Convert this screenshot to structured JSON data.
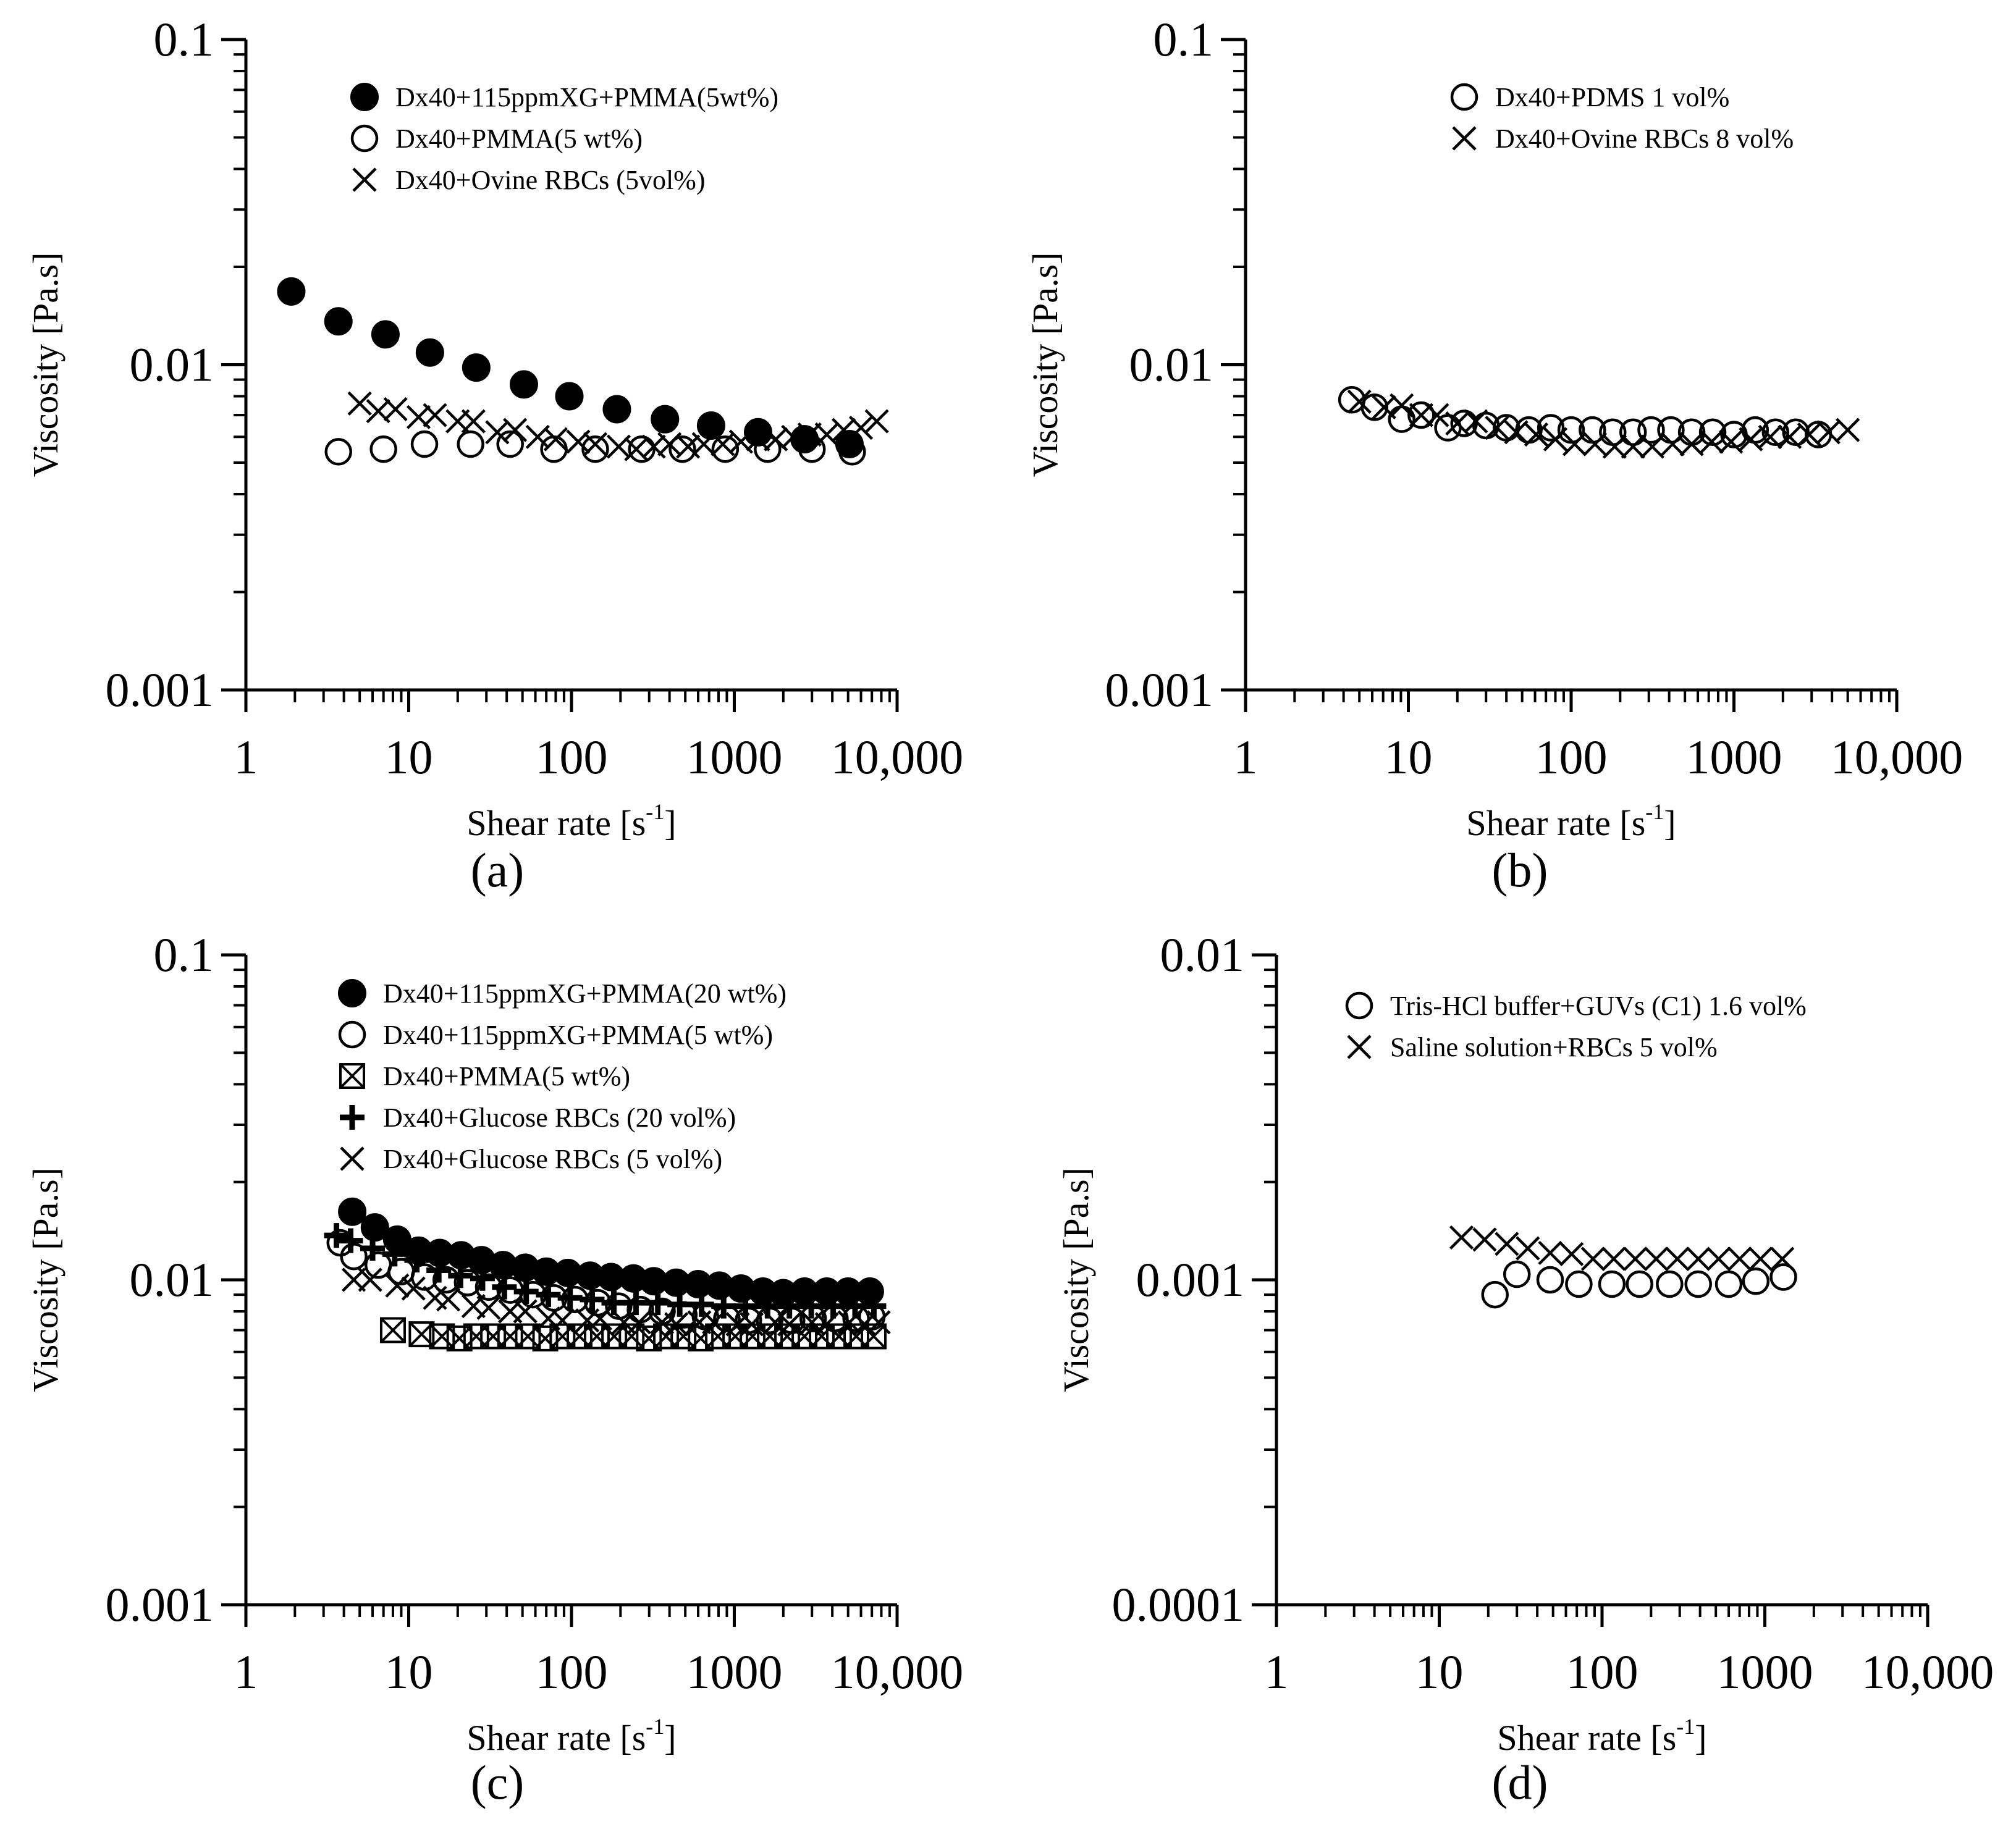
{
  "chart_data": [
    {
      "id": "a",
      "type": "scatter",
      "panel_label": "(a)",
      "x_scale": "log",
      "y_scale": "log",
      "xlim": [
        1,
        10000
      ],
      "ylim": [
        0.001,
        0.1
      ],
      "xticks": [
        "1",
        "10",
        "100",
        "1000",
        "10,000"
      ],
      "yticks": [
        "0.001",
        "0.01",
        "0.1"
      ],
      "xlabel": "Shear rate  [s",
      "xlabel_sup": "-1",
      "xlabel_end": "]",
      "ylabel": "Viscosity [Pa.s]",
      "legend_position": "top-right",
      "series": [
        {
          "name": "Dx40+115ppmXG+PMMA(5wt%)",
          "marker": "filled-circle",
          "x": [
            1.9,
            3.7,
            7.2,
            13.5,
            26,
            51,
            97,
            190,
            375,
            720,
            1400,
            2700,
            5100
          ],
          "y": [
            0.0168,
            0.0136,
            0.0124,
            0.0109,
            0.0098,
            0.0087,
            0.008,
            0.0073,
            0.0068,
            0.0065,
            0.0062,
            0.0059,
            0.0057
          ]
        },
        {
          "name": "Dx40+PMMA(5 wt%)",
          "marker": "open-circle",
          "x": [
            3.7,
            7.0,
            12.5,
            24,
            42,
            78,
            140,
            270,
            480,
            880,
            1600,
            3000,
            5300
          ],
          "y": [
            0.0054,
            0.0055,
            0.0057,
            0.0057,
            0.0057,
            0.0055,
            0.0055,
            0.0055,
            0.0055,
            0.0055,
            0.0055,
            0.0055,
            0.0054
          ]
        },
        {
          "name": "Dx40+Ovine RBCs (5vol%)",
          "marker": "x",
          "x": [
            5,
            6.5,
            8.3,
            11.5,
            14.5,
            20,
            25,
            35,
            45,
            62,
            80,
            110,
            140,
            195,
            250,
            320,
            400,
            520,
            650,
            850,
            1100,
            1400,
            1800,
            2300,
            2900,
            3700,
            4700,
            6000,
            7500
          ],
          "y": [
            0.0076,
            0.0072,
            0.0073,
            0.0069,
            0.007,
            0.0067,
            0.0067,
            0.0062,
            0.0063,
            0.006,
            0.0059,
            0.0058,
            0.0057,
            0.0056,
            0.0055,
            0.0056,
            0.0057,
            0.0056,
            0.0057,
            0.0057,
            0.0058,
            0.0059,
            0.0059,
            0.006,
            0.0061,
            0.0061,
            0.0063,
            0.0064,
            0.0067
          ]
        }
      ]
    },
    {
      "id": "b",
      "type": "scatter",
      "panel_label": "(b)",
      "x_scale": "log",
      "y_scale": "log",
      "xlim": [
        1,
        10000
      ],
      "ylim": [
        0.001,
        0.1
      ],
      "xticks": [
        "1",
        "10",
        "100",
        "1000",
        "10,000"
      ],
      "yticks": [
        "0.001",
        "0.01",
        "0.1"
      ],
      "xlabel": "Shear rate  [s",
      "xlabel_sup": "-1",
      "xlabel_end": "]",
      "ylabel": "Viscosity [Pa.s]",
      "legend_position": "top-right",
      "series": [
        {
          "name": "Dx40+PDMS 1 vol%",
          "marker": "open-circle",
          "x": [
            4.5,
            6.2,
            9.1,
            12,
            17.5,
            22,
            30,
            40,
            55,
            75,
            100,
            135,
            180,
            240,
            310,
            410,
            550,
            740,
            1000,
            1350,
            1800,
            2400,
            3300
          ],
          "y": [
            0.0078,
            0.0074,
            0.0068,
            0.007,
            0.0064,
            0.0066,
            0.0065,
            0.0064,
            0.0063,
            0.0064,
            0.0063,
            0.0063,
            0.0062,
            0.0062,
            0.0063,
            0.0063,
            0.0062,
            0.0062,
            0.0061,
            0.0063,
            0.0062,
            0.0062,
            0.0061
          ]
        },
        {
          "name": "Dx40+Ovine RBCs 8 vol%",
          "marker": "x",
          "x": [
            5,
            7.1,
            9.1,
            12,
            15,
            20,
            26,
            35,
            46,
            61,
            80,
            105,
            140,
            185,
            240,
            315,
            420,
            550,
            730,
            960,
            1270,
            1670,
            2200,
            2900,
            3800,
            5000
          ],
          "y": [
            0.0077,
            0.0074,
            0.0075,
            0.007,
            0.007,
            0.0066,
            0.0067,
            0.0064,
            0.0062,
            0.0061,
            0.0059,
            0.0057,
            0.0057,
            0.0056,
            0.0056,
            0.0056,
            0.0057,
            0.0057,
            0.0058,
            0.0058,
            0.0059,
            0.006,
            0.006,
            0.0061,
            0.0062,
            0.0063
          ]
        }
      ]
    },
    {
      "id": "c",
      "type": "scatter",
      "panel_label": "(c)",
      "x_scale": "log",
      "y_scale": "log",
      "xlim": [
        1,
        10000
      ],
      "ylim": [
        0.001,
        0.1
      ],
      "xticks": [
        "1",
        "10",
        "100",
        "1000",
        "10,000"
      ],
      "yticks": [
        "0.001",
        "0.01",
        "0.1"
      ],
      "xlabel": "Shear rate  [s",
      "xlabel_sup": "-1",
      "xlabel_end": "]",
      "ylabel": "Viscosity [Pa.s]",
      "legend_position": "top-right",
      "series": [
        {
          "name": "Dx40+115ppmXG+PMMA(20 wt%)",
          "marker": "filled-circle",
          "x": [
            4.5,
            6.2,
            8.5,
            11.5,
            15.5,
            21,
            28,
            38,
            52,
            70,
            95,
            130,
            175,
            240,
            320,
            440,
            600,
            810,
            1100,
            1500,
            2000,
            2700,
            3700,
            5000,
            6800
          ],
          "y": [
            0.0162,
            0.0145,
            0.0133,
            0.0123,
            0.0121,
            0.0119,
            0.0115,
            0.0111,
            0.0109,
            0.0106,
            0.0105,
            0.0103,
            0.0102,
            0.0101,
            0.0099,
            0.0098,
            0.0097,
            0.0096,
            0.0094,
            0.0092,
            0.0091,
            0.0092,
            0.0092,
            0.0092,
            0.0092
          ]
        },
        {
          "name": "Dx40+115ppmXG+PMMA(5 wt%)",
          "marker": "open-circle",
          "x": [
            3.8,
            4.6,
            6.5,
            9,
            12.5,
            17,
            23,
            31,
            42,
            58,
            78,
            105,
            145,
            195,
            265,
            360,
            490,
            665,
            900,
            1220,
            1650,
            2250,
            3050,
            4150,
            5600,
            7000
          ],
          "y": [
            0.013,
            0.0118,
            0.0111,
            0.0106,
            0.0102,
            0.01,
            0.0098,
            0.0095,
            0.0093,
            0.009,
            0.0088,
            0.0087,
            0.0085,
            0.0083,
            0.0081,
            0.008,
            0.0078,
            0.0077,
            0.0076,
            0.0075,
            0.0075,
            0.0075,
            0.0076,
            0.0076,
            0.0076,
            0.0077
          ]
        },
        {
          "name": "Dx40+PMMA(5 wt%)",
          "marker": "boxed-x",
          "x": [
            8,
            12,
            16,
            20.5,
            26,
            33,
            42,
            54,
            69,
            88,
            112,
            143,
            183,
            234,
            299,
            381,
            487,
            622,
            794,
            1014,
            1295,
            1654,
            2112,
            2697,
            3444,
            4398,
            5617,
            7173
          ],
          "y": [
            0.007,
            0.0068,
            0.0067,
            0.0066,
            0.0067,
            0.0067,
            0.0067,
            0.0067,
            0.0066,
            0.0067,
            0.0067,
            0.0067,
            0.0067,
            0.0067,
            0.0066,
            0.0067,
            0.0067,
            0.0066,
            0.0067,
            0.0067,
            0.0067,
            0.0067,
            0.0067,
            0.0067,
            0.0067,
            0.0067,
            0.0067,
            0.0067
          ]
        },
        {
          "name": "Dx40+Glucose RBCs (20 vol%)",
          "marker": "plus",
          "x": [
            3.6,
            4.4,
            6,
            8.2,
            11.2,
            15.3,
            20.8,
            28.4,
            38.7,
            52.7,
            72,
            98,
            134,
            182,
            249,
            339,
            462,
            630,
            860,
            1170,
            1600,
            2180,
            2970,
            4050,
            5520,
            7200
          ],
          "y": [
            0.0137,
            0.0132,
            0.0125,
            0.012,
            0.0115,
            0.0107,
            0.0103,
            0.0101,
            0.0095,
            0.0092,
            0.009,
            0.0088,
            0.0087,
            0.0085,
            0.0085,
            0.0085,
            0.0084,
            0.0084,
            0.0083,
            0.0083,
            0.0083,
            0.0083,
            0.0083,
            0.0083,
            0.0083,
            0.0083
          ]
        },
        {
          "name": "Dx40+Glucose RBCs (5 vol%)",
          "marker": "x",
          "x": [
            4.6,
            5.8,
            8.5,
            10.7,
            14.5,
            17.5,
            25,
            31,
            42,
            52,
            72,
            88,
            125,
            150,
            210,
            260,
            360,
            440,
            610,
            750,
            1050,
            1280,
            1780,
            2180,
            3000,
            3700,
            5100,
            6300,
            7700
          ],
          "y": [
            0.01,
            0.01,
            0.0096,
            0.0094,
            0.0088,
            0.0087,
            0.0083,
            0.0082,
            0.008,
            0.008,
            0.0076,
            0.0075,
            0.0075,
            0.0076,
            0.0074,
            0.0074,
            0.0074,
            0.0073,
            0.0074,
            0.0074,
            0.0073,
            0.0073,
            0.0074,
            0.0073,
            0.0074,
            0.0073,
            0.0074,
            0.0073,
            0.0074
          ]
        }
      ]
    },
    {
      "id": "d",
      "type": "scatter",
      "panel_label": "(d)",
      "x_scale": "log",
      "y_scale": "log",
      "xlim": [
        1,
        10000
      ],
      "ylim": [
        0.0001,
        0.01
      ],
      "xticks": [
        "1",
        "10",
        "100",
        "1000",
        "10,000"
      ],
      "yticks": [
        "0.0001",
        "0.001",
        "0.01"
      ],
      "xlabel": "Shear rate  [s",
      "xlabel_sup": "-1",
      "xlabel_end": "]",
      "ylabel": "Viscosity [Pa.s]",
      "legend_position": "top-right",
      "series": [
        {
          "name": "Tris-HCl buffer+GUVs (C1) 1.6 vol%",
          "marker": "open-circle",
          "x": [
            22,
            30,
            48,
            72,
            115,
            170,
            260,
            390,
            600,
            880,
            1300
          ],
          "y": [
            0.0009,
            0.00104,
            0.001,
            0.00097,
            0.00097,
            0.00097,
            0.00097,
            0.00097,
            0.00097,
            0.00099,
            0.00102
          ]
        },
        {
          "name": "Saline solution+RBCs 5 vol%",
          "marker": "x",
          "x": [
            13.7,
            19,
            26,
            35,
            48,
            65,
            88,
            118,
            160,
            215,
            290,
            390,
            520,
            700,
            940,
            1280
          ],
          "y": [
            0.00135,
            0.00133,
            0.00129,
            0.00125,
            0.00121,
            0.0012,
            0.00116,
            0.00116,
            0.00116,
            0.00116,
            0.00116,
            0.00116,
            0.00116,
            0.00116,
            0.00116,
            0.00116
          ]
        }
      ]
    }
  ]
}
